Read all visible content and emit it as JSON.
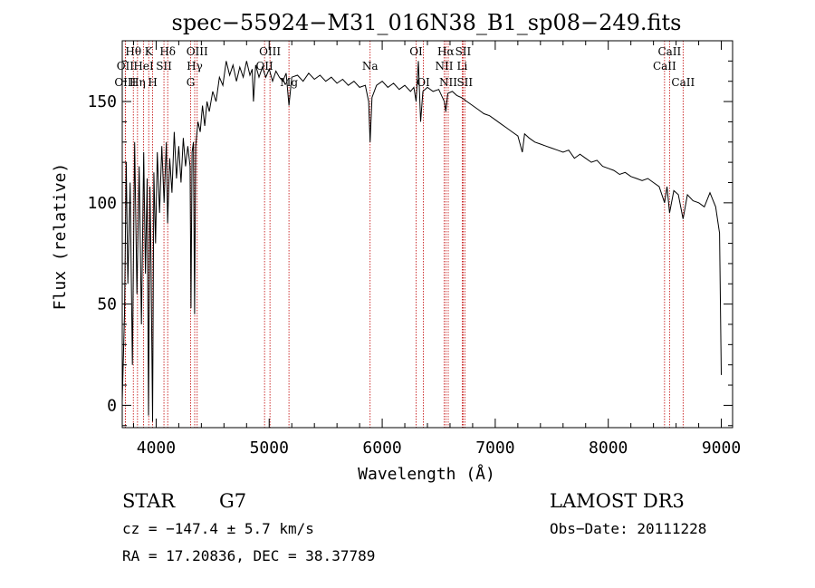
{
  "chart_data": {
    "type": "line",
    "title": "spec−55924−M31_016N38_B1_sp08−249.fits",
    "xlabel": "Wavelength (Å)",
    "ylabel": "Flux (relative)",
    "xlim": [
      3700,
      9100
    ],
    "ylim": [
      -11,
      180
    ],
    "xticks": [
      4000,
      5000,
      6000,
      7000,
      8000,
      9000
    ],
    "yticks": [
      0,
      50,
      100,
      150
    ],
    "series": [
      {
        "name": "flux",
        "points": [
          [
            3700,
            2
          ],
          [
            3720,
            45
          ],
          [
            3735,
            120
          ],
          [
            3750,
            60
          ],
          [
            3770,
            110
          ],
          [
            3790,
            20
          ],
          [
            3810,
            130
          ],
          [
            3830,
            55
          ],
          [
            3850,
            118
          ],
          [
            3870,
            40
          ],
          [
            3890,
            125
          ],
          [
            3905,
            65
          ],
          [
            3920,
            112
          ],
          [
            3932,
            -5
          ],
          [
            3945,
            108
          ],
          [
            3955,
            70
          ],
          [
            3968,
            -8
          ],
          [
            3980,
            115
          ],
          [
            3995,
            80
          ],
          [
            4010,
            125
          ],
          [
            4030,
            95
          ],
          [
            4050,
            128
          ],
          [
            4070,
            100
          ],
          [
            4090,
            130
          ],
          [
            4101,
            90
          ],
          [
            4120,
            122
          ],
          [
            4140,
            105
          ],
          [
            4160,
            135
          ],
          [
            4180,
            112
          ],
          [
            4200,
            128
          ],
          [
            4220,
            110
          ],
          [
            4240,
            132
          ],
          [
            4260,
            118
          ],
          [
            4280,
            128
          ],
          [
            4300,
            118
          ],
          [
            4308,
            48
          ],
          [
            4318,
            125
          ],
          [
            4330,
            130
          ],
          [
            4340,
            45
          ],
          [
            4350,
            128
          ],
          [
            4370,
            140
          ],
          [
            4390,
            135
          ],
          [
            4410,
            148
          ],
          [
            4430,
            138
          ],
          [
            4450,
            150
          ],
          [
            4470,
            145
          ],
          [
            4500,
            155
          ],
          [
            4530,
            150
          ],
          [
            4560,
            162
          ],
          [
            4590,
            158
          ],
          [
            4620,
            170
          ],
          [
            4650,
            163
          ],
          [
            4680,
            168
          ],
          [
            4710,
            160
          ],
          [
            4740,
            167
          ],
          [
            4770,
            162
          ],
          [
            4800,
            170
          ],
          [
            4830,
            163
          ],
          [
            4850,
            166
          ],
          [
            4861,
            150
          ],
          [
            4880,
            168
          ],
          [
            4910,
            162
          ],
          [
            4940,
            167
          ],
          [
            4970,
            162
          ],
          [
            5000,
            166
          ],
          [
            5030,
            160
          ],
          [
            5060,
            165
          ],
          [
            5090,
            162
          ],
          [
            5120,
            160
          ],
          [
            5150,
            164
          ],
          [
            5175,
            148
          ],
          [
            5200,
            162
          ],
          [
            5250,
            163
          ],
          [
            5300,
            160
          ],
          [
            5350,
            164
          ],
          [
            5400,
            161
          ],
          [
            5450,
            163
          ],
          [
            5500,
            160
          ],
          [
            5550,
            162
          ],
          [
            5600,
            159
          ],
          [
            5650,
            161
          ],
          [
            5700,
            158
          ],
          [
            5750,
            160
          ],
          [
            5800,
            157
          ],
          [
            5850,
            158
          ],
          [
            5880,
            150
          ],
          [
            5893,
            130
          ],
          [
            5910,
            152
          ],
          [
            5950,
            158
          ],
          [
            6000,
            160
          ],
          [
            6050,
            157
          ],
          [
            6100,
            159
          ],
          [
            6150,
            156
          ],
          [
            6200,
            158
          ],
          [
            6250,
            155
          ],
          [
            6280,
            157
          ],
          [
            6300,
            150
          ],
          [
            6320,
            170
          ],
          [
            6340,
            140
          ],
          [
            6360,
            155
          ],
          [
            6400,
            157
          ],
          [
            6450,
            155
          ],
          [
            6500,
            156
          ],
          [
            6550,
            150
          ],
          [
            6563,
            145
          ],
          [
            6580,
            154
          ],
          [
            6620,
            155
          ],
          [
            6660,
            153
          ],
          [
            6700,
            152
          ],
          [
            6750,
            150
          ],
          [
            6800,
            148
          ],
          [
            6850,
            146
          ],
          [
            6900,
            144
          ],
          [
            6950,
            143
          ],
          [
            7000,
            141
          ],
          [
            7050,
            139
          ],
          [
            7100,
            137
          ],
          [
            7150,
            135
          ],
          [
            7200,
            133
          ],
          [
            7240,
            125
          ],
          [
            7260,
            134
          ],
          [
            7300,
            132
          ],
          [
            7350,
            130
          ],
          [
            7400,
            129
          ],
          [
            7450,
            128
          ],
          [
            7500,
            127
          ],
          [
            7550,
            126
          ],
          [
            7600,
            125
          ],
          [
            7650,
            126
          ],
          [
            7700,
            122
          ],
          [
            7750,
            124
          ],
          [
            7800,
            122
          ],
          [
            7850,
            120
          ],
          [
            7900,
            121
          ],
          [
            7950,
            118
          ],
          [
            8000,
            117
          ],
          [
            8050,
            116
          ],
          [
            8100,
            114
          ],
          [
            8150,
            115
          ],
          [
            8200,
            113
          ],
          [
            8250,
            112
          ],
          [
            8300,
            111
          ],
          [
            8350,
            112
          ],
          [
            8400,
            110
          ],
          [
            8450,
            108
          ],
          [
            8498,
            100
          ],
          [
            8520,
            108
          ],
          [
            8542,
            95
          ],
          [
            8580,
            106
          ],
          [
            8620,
            104
          ],
          [
            8662,
            92
          ],
          [
            8700,
            104
          ],
          [
            8750,
            101
          ],
          [
            8800,
            100
          ],
          [
            8850,
            98
          ],
          [
            8900,
            105
          ],
          [
            8950,
            98
          ],
          [
            8985,
            85
          ],
          [
            9000,
            15
          ]
        ]
      }
    ],
    "spectral_lines": [
      {
        "label": "Hθ",
        "wavelength": 3798,
        "row": 1
      },
      {
        "label": "OII",
        "wavelength": 3727,
        "row": 2
      },
      {
        "label": "OIII",
        "wavelength": 3727,
        "row": 3
      },
      {
        "label": "K",
        "wavelength": 3934,
        "row": 1
      },
      {
        "label": "HeI",
        "wavelength": 3889,
        "row": 2
      },
      {
        "label": "Hη",
        "wavelength": 3835,
        "row": 3
      },
      {
        "label": "Hδ",
        "wavelength": 4102,
        "row": 1
      },
      {
        "label": "SII",
        "wavelength": 4069,
        "row": 2
      },
      {
        "label": "H",
        "wavelength": 3969,
        "row": 3
      },
      {
        "label": "OIII",
        "wavelength": 4363,
        "row": 1
      },
      {
        "label": "Hγ",
        "wavelength": 4341,
        "row": 2
      },
      {
        "label": "G",
        "wavelength": 4305,
        "row": 3
      },
      {
        "label": "OIII",
        "wavelength": 5007,
        "row": 1
      },
      {
        "label": "OII",
        "wavelength": 4959,
        "row": 2
      },
      {
        "label": "Mg",
        "wavelength": 5175,
        "row": 3
      },
      {
        "label": "Na",
        "wavelength": 5893,
        "row": 2
      },
      {
        "label": "OI",
        "wavelength": 6300,
        "row": 1
      },
      {
        "label": "OI",
        "wavelength": 6364,
        "row": 3
      },
      {
        "label": "Hα",
        "wavelength": 6563,
        "row": 1
      },
      {
        "label": "SII",
        "wavelength": 6716,
        "row": 1
      },
      {
        "label": "NII",
        "wavelength": 6548,
        "row": 2
      },
      {
        "label": "Li",
        "wavelength": 6708,
        "row": 2
      },
      {
        "label": "NII",
        "wavelength": 6584,
        "row": 3
      },
      {
        "label": "SII",
        "wavelength": 6731,
        "row": 3
      },
      {
        "label": "CaII",
        "wavelength": 8542,
        "row": 1
      },
      {
        "label": "CaII",
        "wavelength": 8498,
        "row": 2
      },
      {
        "label": "CaII",
        "wavelength": 8662,
        "row": 3
      }
    ],
    "line_color": "#000000",
    "marker_color": "#c00000"
  },
  "info": {
    "class": "STAR",
    "subclass": "G7",
    "survey": "LAMOST DR3",
    "cz": "cz = −147.4 ± 5.7 km/s",
    "obs_date": "Obs−Date: 20111228",
    "coords": "RA =  17.20836, DEC =  38.37789"
  }
}
